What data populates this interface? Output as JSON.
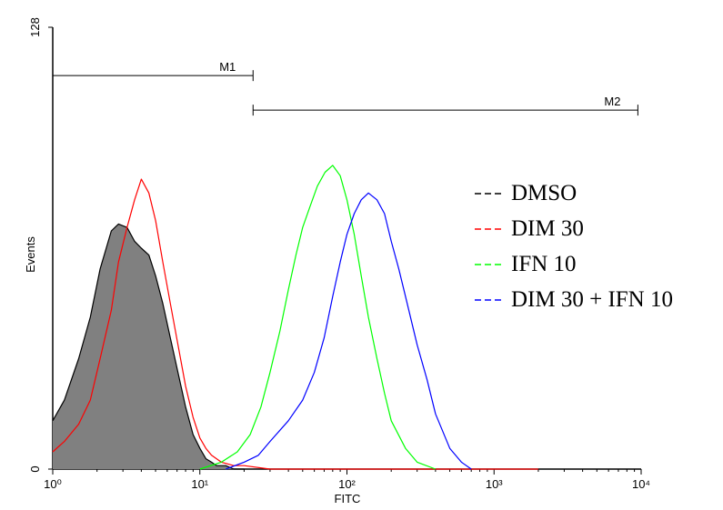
{
  "chart_data": {
    "type": "line",
    "xlabel": "FITC",
    "ylabel": "Events",
    "x_scale": "log",
    "xlim": [
      1,
      10000
    ],
    "ylim": [
      0,
      128
    ],
    "x_ticks": [
      "10⁰",
      "10¹",
      "10²",
      "10³",
      "10⁴"
    ],
    "y_ticks": [
      "0",
      "128"
    ],
    "grid": false,
    "legend_position": "right",
    "markers": [
      {
        "label": "M1",
        "range": [
          1,
          23
        ],
        "level": 114
      },
      {
        "label": "M2",
        "range": [
          23,
          9500
        ],
        "level": 104
      }
    ],
    "series": [
      {
        "name": "DMSO",
        "color": "#000000",
        "filled": true,
        "fill_color": "#808080",
        "x": [
          1.0,
          1.2,
          1.5,
          1.8,
          2.1,
          2.5,
          2.8,
          3.2,
          3.6,
          4.0,
          4.5,
          5.0,
          5.6,
          6.3,
          7.1,
          8.0,
          9.0,
          10,
          11,
          12,
          13,
          15,
          17,
          20
        ],
        "y": [
          14,
          20,
          32,
          44,
          58,
          69,
          71,
          70,
          66,
          64,
          62,
          56,
          48,
          38,
          28,
          18,
          10,
          6,
          3,
          2,
          1,
          1,
          0,
          0
        ]
      },
      {
        "name": "DIM 30",
        "color": "#ff0000",
        "x": [
          1.0,
          1.2,
          1.5,
          1.8,
          2.1,
          2.5,
          2.8,
          3.2,
          3.6,
          4.0,
          4.5,
          5.0,
          5.6,
          6.3,
          7.1,
          8.0,
          9.0,
          10,
          11,
          12,
          14,
          17,
          20,
          30,
          50,
          100,
          200,
          500,
          2000
        ],
        "y": [
          5,
          8,
          13,
          20,
          32,
          46,
          60,
          70,
          78,
          84,
          80,
          72,
          60,
          48,
          36,
          24,
          15,
          9,
          6,
          4,
          2,
          1,
          1,
          0,
          0,
          0,
          0,
          0,
          0
        ]
      },
      {
        "name": "IFN 10",
        "color": "#00ff00",
        "x": [
          10,
          14,
          18,
          22,
          26,
          30,
          35,
          40,
          45,
          50,
          56,
          63,
          71,
          80,
          90,
          100,
          112,
          125,
          140,
          160,
          180,
          200,
          250,
          300,
          400
        ],
        "y": [
          0,
          2,
          5,
          10,
          18,
          28,
          40,
          52,
          62,
          70,
          76,
          82,
          86,
          88,
          85,
          78,
          68,
          56,
          44,
          32,
          22,
          14,
          6,
          2,
          0
        ]
      },
      {
        "name": "DIM 30 + IFN 10",
        "color": "#0000ff",
        "x": [
          15,
          20,
          25,
          30,
          40,
          50,
          60,
          70,
          80,
          90,
          100,
          112,
          125,
          140,
          160,
          180,
          200,
          225,
          250,
          300,
          350,
          400,
          500,
          600,
          700
        ],
        "y": [
          0,
          2,
          4,
          8,
          14,
          20,
          28,
          38,
          50,
          60,
          68,
          74,
          78,
          80,
          78,
          74,
          66,
          58,
          50,
          36,
          26,
          16,
          6,
          2,
          0
        ]
      }
    ]
  }
}
